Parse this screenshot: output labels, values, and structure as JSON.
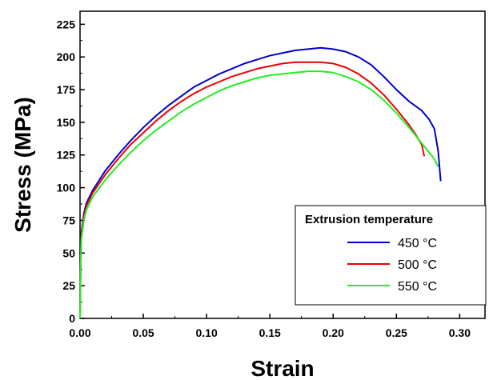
{
  "chart_data": {
    "type": "line",
    "xlabel": "Strain",
    "ylabel": "Stress (MPa)",
    "xlim": [
      0,
      0.32
    ],
    "ylim": [
      0,
      235
    ],
    "xticks": [
      "0.00",
      "0.05",
      "0.10",
      "0.15",
      "0.20",
      "0.25",
      "0.30"
    ],
    "yticks": [
      "0",
      "25",
      "50",
      "75",
      "100",
      "125",
      "150",
      "175",
      "200",
      "225"
    ],
    "grid": false,
    "legend": {
      "title": "Extrusion temperature",
      "position": "bottom-right"
    },
    "series": [
      {
        "name": "450 °C",
        "color": "#0000CC",
        "points": [
          [
            0.0,
            0
          ],
          [
            0.0005,
            40
          ],
          [
            0.001,
            65
          ],
          [
            0.003,
            80
          ],
          [
            0.005,
            88
          ],
          [
            0.01,
            98
          ],
          [
            0.02,
            113
          ],
          [
            0.03,
            125
          ],
          [
            0.04,
            136
          ],
          [
            0.05,
            146
          ],
          [
            0.06,
            155
          ],
          [
            0.07,
            163
          ],
          [
            0.08,
            170
          ],
          [
            0.09,
            177
          ],
          [
            0.1,
            182
          ],
          [
            0.11,
            187
          ],
          [
            0.12,
            191
          ],
          [
            0.13,
            195
          ],
          [
            0.14,
            198
          ],
          [
            0.15,
            201
          ],
          [
            0.16,
            203
          ],
          [
            0.17,
            205
          ],
          [
            0.18,
            206
          ],
          [
            0.19,
            207
          ],
          [
            0.2,
            206
          ],
          [
            0.21,
            204
          ],
          [
            0.22,
            200
          ],
          [
            0.23,
            194
          ],
          [
            0.24,
            185
          ],
          [
            0.25,
            175
          ],
          [
            0.26,
            166
          ],
          [
            0.27,
            159
          ],
          [
            0.276,
            152
          ],
          [
            0.28,
            145
          ],
          [
            0.283,
            128
          ],
          [
            0.285,
            105
          ]
        ]
      },
      {
        "name": "500 °C",
        "color": "#EE0000",
        "points": [
          [
            0.0,
            0
          ],
          [
            0.0005,
            40
          ],
          [
            0.001,
            63
          ],
          [
            0.003,
            78
          ],
          [
            0.005,
            86
          ],
          [
            0.01,
            96
          ],
          [
            0.02,
            110
          ],
          [
            0.03,
            122
          ],
          [
            0.04,
            133
          ],
          [
            0.05,
            142
          ],
          [
            0.06,
            151
          ],
          [
            0.07,
            159
          ],
          [
            0.08,
            166
          ],
          [
            0.09,
            172
          ],
          [
            0.1,
            177
          ],
          [
            0.11,
            181
          ],
          [
            0.12,
            185
          ],
          [
            0.13,
            188
          ],
          [
            0.14,
            191
          ],
          [
            0.15,
            193
          ],
          [
            0.16,
            195
          ],
          [
            0.17,
            196
          ],
          [
            0.18,
            196
          ],
          [
            0.19,
            196
          ],
          [
            0.2,
            195
          ],
          [
            0.21,
            192
          ],
          [
            0.22,
            187
          ],
          [
            0.23,
            180
          ],
          [
            0.24,
            171
          ],
          [
            0.25,
            160
          ],
          [
            0.26,
            148
          ],
          [
            0.265,
            141
          ],
          [
            0.27,
            133
          ],
          [
            0.272,
            124
          ]
        ]
      },
      {
        "name": "550 °C",
        "color": "#22EE22",
        "points": [
          [
            0.0,
            0
          ],
          [
            0.0005,
            38
          ],
          [
            0.001,
            60
          ],
          [
            0.003,
            75
          ],
          [
            0.005,
            83
          ],
          [
            0.01,
            93
          ],
          [
            0.02,
            106
          ],
          [
            0.03,
            117
          ],
          [
            0.04,
            127
          ],
          [
            0.05,
            136
          ],
          [
            0.06,
            144
          ],
          [
            0.07,
            151
          ],
          [
            0.08,
            158
          ],
          [
            0.09,
            164
          ],
          [
            0.1,
            169
          ],
          [
            0.11,
            174
          ],
          [
            0.12,
            178
          ],
          [
            0.13,
            181
          ],
          [
            0.14,
            184
          ],
          [
            0.15,
            186
          ],
          [
            0.16,
            187
          ],
          [
            0.17,
            188
          ],
          [
            0.18,
            189
          ],
          [
            0.19,
            189
          ],
          [
            0.2,
            188
          ],
          [
            0.21,
            185
          ],
          [
            0.22,
            181
          ],
          [
            0.23,
            175
          ],
          [
            0.24,
            167
          ],
          [
            0.25,
            157
          ],
          [
            0.26,
            146
          ],
          [
            0.27,
            134
          ],
          [
            0.275,
            128
          ],
          [
            0.28,
            122
          ],
          [
            0.283,
            116
          ]
        ]
      }
    ]
  }
}
